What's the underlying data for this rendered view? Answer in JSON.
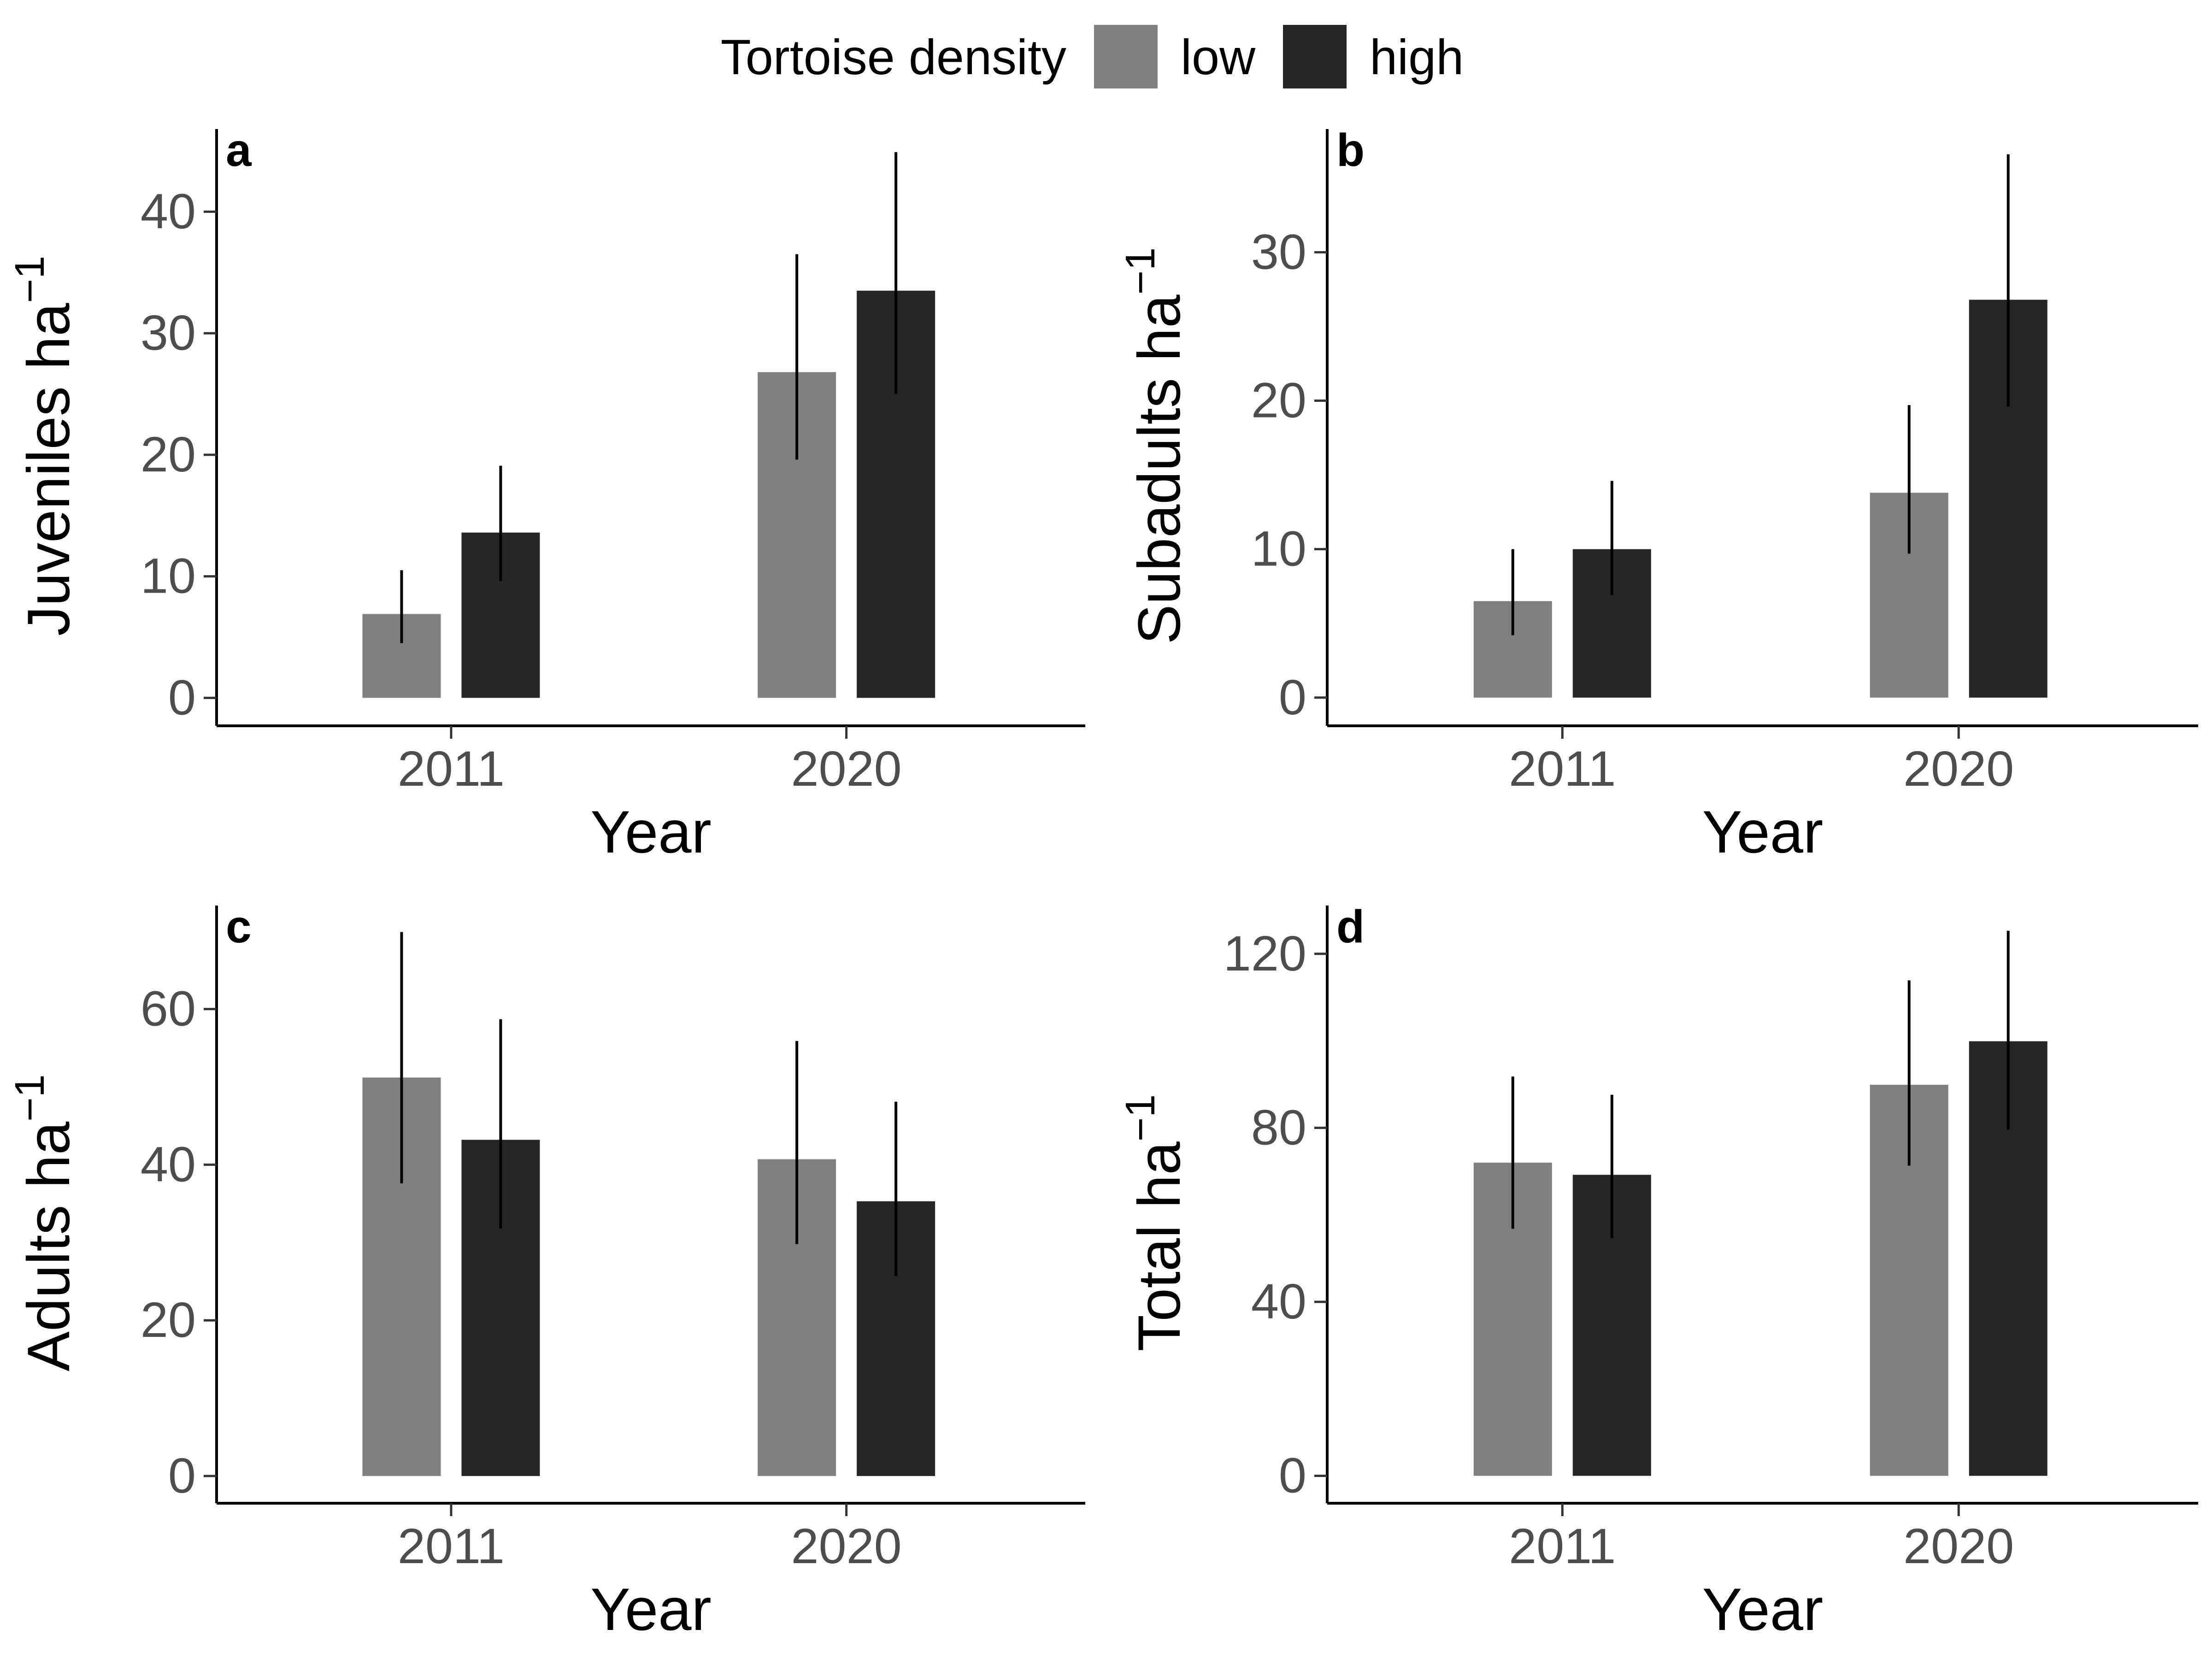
{
  "legend": {
    "title": "Tortoise density",
    "items": [
      {
        "label": "low",
        "color": "#808080"
      },
      {
        "label": "high",
        "color": "#262626"
      }
    ]
  },
  "chart_data": [
    {
      "type": "bar",
      "panel_label": "a",
      "categories": [
        "2011",
        "2020"
      ],
      "xlabel": "Year",
      "ylabel": "Juveniles ha",
      "ylabel_superscript": "−1",
      "ylim": [
        -2.3,
        46.8
      ],
      "yticks": [
        0,
        10,
        20,
        30,
        40
      ],
      "grid": false,
      "legend_position": "top",
      "series": [
        {
          "name": "low",
          "color": "#808080",
          "values": [
            6.9,
            26.8
          ],
          "err_low": [
            4.5,
            19.6
          ],
          "err_high": [
            10.5,
            36.5
          ]
        },
        {
          "name": "high",
          "color": "#262626",
          "values": [
            13.6,
            33.5
          ],
          "err_low": [
            9.6,
            25.0
          ],
          "err_high": [
            19.1,
            44.9
          ]
        }
      ]
    },
    {
      "type": "bar",
      "panel_label": "b",
      "categories": [
        "2011",
        "2020"
      ],
      "xlabel": "Year",
      "ylabel": "Subadults ha",
      "ylabel_superscript": "−1",
      "ylim": [
        -1.9,
        38.3
      ],
      "yticks": [
        0,
        10,
        20,
        30
      ],
      "grid": false,
      "legend_position": "top",
      "series": [
        {
          "name": "low",
          "color": "#808080",
          "values": [
            6.5,
            13.8
          ],
          "err_low": [
            4.2,
            9.7
          ],
          "err_high": [
            10.0,
            19.7
          ]
        },
        {
          "name": "high",
          "color": "#262626",
          "values": [
            10.0,
            26.8
          ],
          "err_low": [
            6.9,
            19.6
          ],
          "err_high": [
            14.6,
            36.6
          ]
        }
      ]
    },
    {
      "type": "bar",
      "panel_label": "c",
      "categories": [
        "2011",
        "2020"
      ],
      "xlabel": "Year",
      "ylabel": "Adults ha",
      "ylabel_superscript": "−1",
      "ylim": [
        -3.5,
        73.3
      ],
      "yticks": [
        0,
        20,
        40,
        60
      ],
      "grid": false,
      "legend_position": "top",
      "series": [
        {
          "name": "low",
          "color": "#808080",
          "values": [
            51.2,
            40.7
          ],
          "err_low": [
            37.6,
            29.8
          ],
          "err_high": [
            69.9,
            55.9
          ]
        },
        {
          "name": "high",
          "color": "#262626",
          "values": [
            43.2,
            35.3
          ],
          "err_low": [
            31.8,
            25.7
          ],
          "err_high": [
            58.7,
            48.1
          ]
        }
      ]
    },
    {
      "type": "bar",
      "panel_label": "d",
      "categories": [
        "2011",
        "2020"
      ],
      "xlabel": "Year",
      "ylabel": "Total ha",
      "ylabel_superscript": "−1",
      "ylim": [
        -6.3,
        131.1
      ],
      "yticks": [
        0,
        40,
        80,
        120
      ],
      "grid": false,
      "legend_position": "top",
      "series": [
        {
          "name": "low",
          "color": "#808080",
          "values": [
            72.0,
            89.9
          ],
          "err_low": [
            56.8,
            71.3
          ],
          "err_high": [
            91.8,
            113.9
          ]
        },
        {
          "name": "high",
          "color": "#262626",
          "values": [
            69.2,
            99.9
          ],
          "err_low": [
            54.6,
            79.6
          ],
          "err_high": [
            87.6,
            125.3
          ]
        }
      ]
    }
  ]
}
